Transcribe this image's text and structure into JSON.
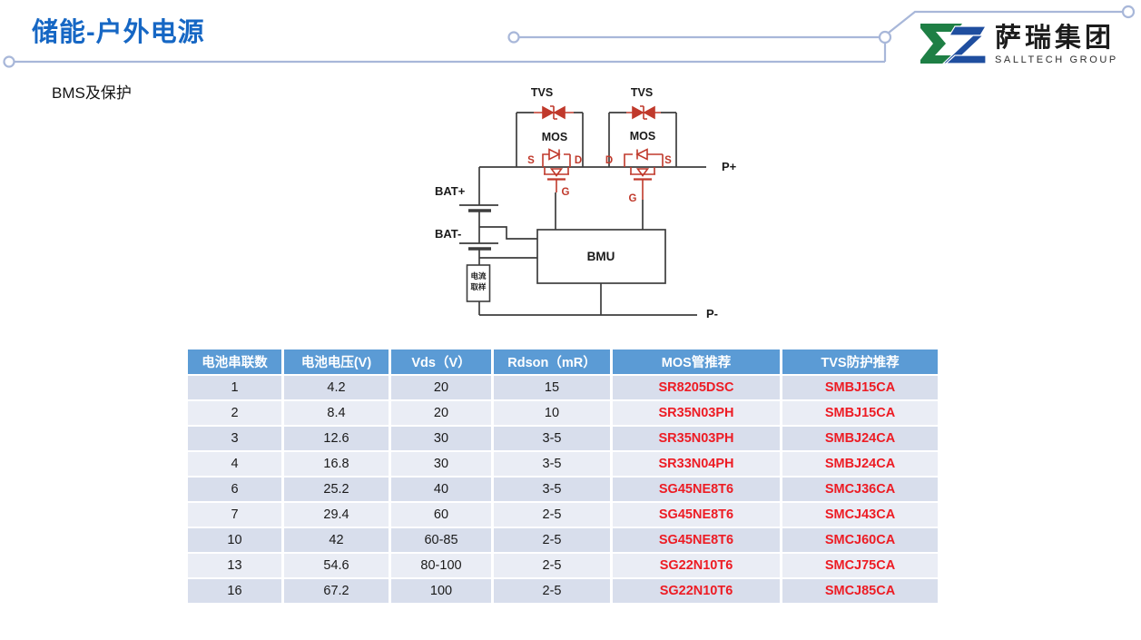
{
  "header": {
    "title": "储能-户外电源",
    "subtitle": "BMS及保护"
  },
  "logo": {
    "company_name": "萨瑞集团",
    "company_name_en": "SALLTECH GROUP"
  },
  "diagram": {
    "labels": {
      "tvs": "TVS",
      "mos": "MOS",
      "s": "S",
      "d": "D",
      "g": "G",
      "bat_plus": "BAT+",
      "bat_minus": "BAT-",
      "bmu": "BMU",
      "current_sample_line1": "电流",
      "current_sample_line2": "取样",
      "p_plus": "P+",
      "p_minus": "P-"
    }
  },
  "table": {
    "headers": [
      "电池串联数",
      "电池电压(V)",
      "Vds（V）",
      "Rdson（mR）",
      "MOS管推荐",
      "TVS防护推荐"
    ],
    "rows": [
      [
        "1",
        "4.2",
        "20",
        "15",
        "SR8205DSC",
        "SMBJ15CA"
      ],
      [
        "2",
        "8.4",
        "20",
        "10",
        "SR35N03PH",
        "SMBJ15CA"
      ],
      [
        "3",
        "12.6",
        "30",
        "3-5",
        "SR35N03PH",
        "SMBJ24CA"
      ],
      [
        "4",
        "16.8",
        "30",
        "3-5",
        "SR33N04PH",
        "SMBJ24CA"
      ],
      [
        "6",
        "25.2",
        "40",
        "3-5",
        "SG45NE8T6",
        "SMCJ36CA"
      ],
      [
        "7",
        "29.4",
        "60",
        "2-5",
        "SG45NE8T6",
        "SMCJ43CA"
      ],
      [
        "10",
        "42",
        "60-85",
        "2-5",
        "SG45NE8T6",
        "SMCJ60CA"
      ],
      [
        "13",
        "54.6",
        "80-100",
        "2-5",
        "SG22N10T6",
        "SMCJ75CA"
      ],
      [
        "16",
        "67.2",
        "100",
        "2-5",
        "SG22N10T6",
        "SMCJ85CA"
      ]
    ]
  },
  "colors": {
    "title_blue": "#1667C4",
    "table_header_blue": "#5B9BD5",
    "row_dark": "#D8DEEC",
    "row_light": "#EAEDF5",
    "table_red": "#ED1C24",
    "diagram_red": "#C0392B",
    "wire_gray": "#3D3D3D",
    "connector_line": "#A8B7D9",
    "logo_green": "#1E7F45",
    "logo_blue": "#1F4E9F"
  }
}
